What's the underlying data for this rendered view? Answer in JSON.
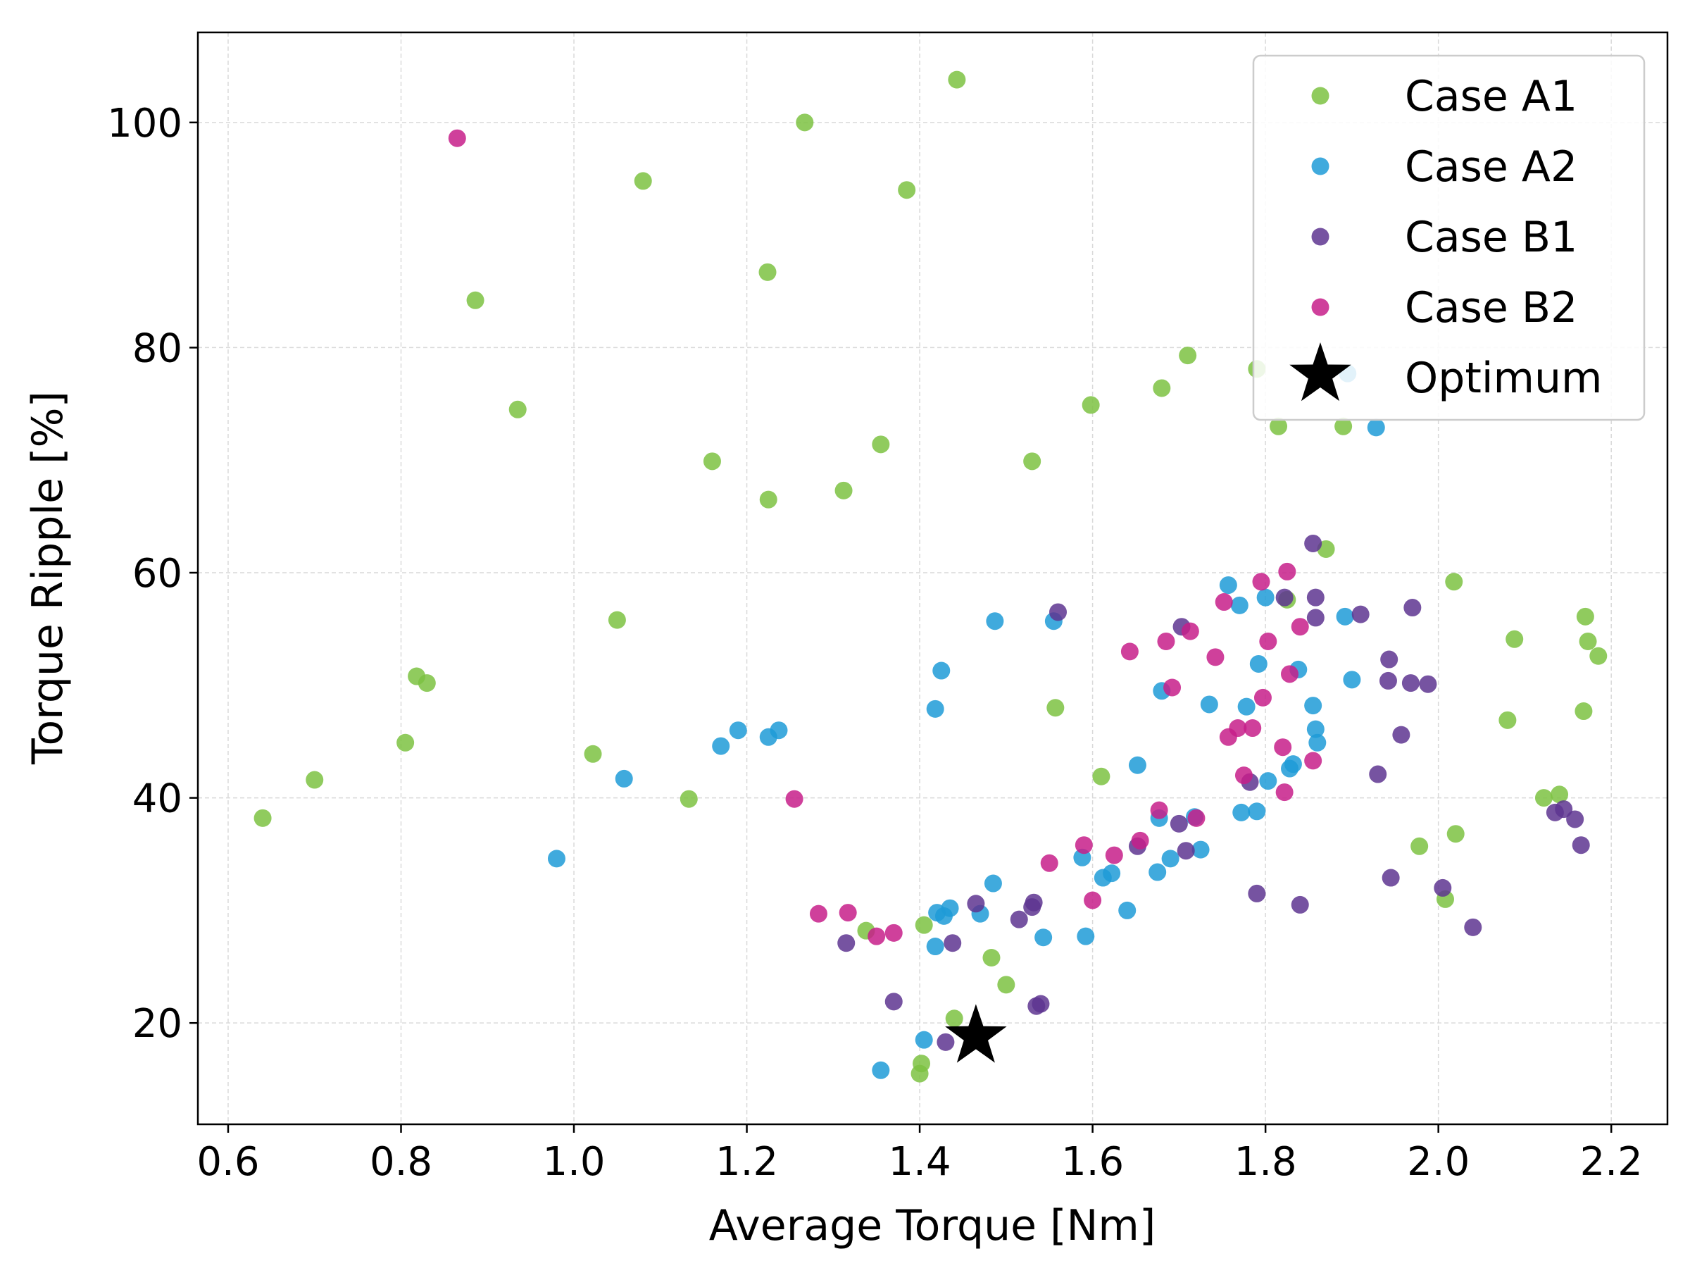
{
  "chart_data": {
    "type": "scatter",
    "xlabel": "Average Torque [Nm]",
    "ylabel": "Torque Ripple [%]",
    "xlim": [
      0.565,
      2.265
    ],
    "ylim": [
      11,
      108
    ],
    "xticks": [
      "0.6",
      "0.8",
      "1.0",
      "1.2",
      "1.4",
      "1.6",
      "1.8",
      "2.0",
      "2.2"
    ],
    "xtick_values": [
      0.6,
      0.8,
      1.0,
      1.2,
      1.4,
      1.6,
      1.8,
      2.0,
      2.2
    ],
    "yticks": [
      "20",
      "40",
      "60",
      "80",
      "100"
    ],
    "ytick_values": [
      20,
      40,
      60,
      80,
      100
    ],
    "grid": true,
    "legend_position": "top-right",
    "series": [
      {
        "name": "Case A1",
        "color": "#7dc242",
        "marker": "circle",
        "points": [
          [
            0.64,
            38.2
          ],
          [
            0.7,
            41.6
          ],
          [
            0.805,
            44.9
          ],
          [
            0.818,
            50.8
          ],
          [
            0.83,
            50.2
          ],
          [
            0.886,
            84.2
          ],
          [
            0.935,
            74.5
          ],
          [
            1.022,
            43.9
          ],
          [
            1.05,
            55.8
          ],
          [
            1.08,
            94.8
          ],
          [
            1.133,
            39.9
          ],
          [
            1.16,
            69.9
          ],
          [
            1.224,
            86.7
          ],
          [
            1.225,
            66.5
          ],
          [
            1.267,
            100.0
          ],
          [
            1.312,
            67.3
          ],
          [
            1.338,
            28.2
          ],
          [
            1.355,
            71.4
          ],
          [
            1.385,
            94.0
          ],
          [
            1.4,
            15.5
          ],
          [
            1.402,
            16.4
          ],
          [
            1.405,
            28.7
          ],
          [
            1.44,
            20.4
          ],
          [
            1.443,
            103.8
          ],
          [
            1.483,
            25.8
          ],
          [
            1.5,
            23.4
          ],
          [
            1.53,
            69.9
          ],
          [
            1.557,
            48.0
          ],
          [
            1.598,
            74.9
          ],
          [
            1.61,
            41.9
          ],
          [
            1.68,
            76.4
          ],
          [
            1.71,
            79.3
          ],
          [
            1.79,
            78.1
          ],
          [
            1.815,
            73.0
          ],
          [
            1.825,
            57.6
          ],
          [
            1.87,
            62.1
          ],
          [
            1.89,
            73.0
          ],
          [
            1.978,
            35.7
          ],
          [
            2.008,
            31.0
          ],
          [
            2.018,
            59.2
          ],
          [
            2.02,
            36.8
          ],
          [
            2.08,
            46.9
          ],
          [
            2.088,
            54.1
          ],
          [
            2.122,
            40.0
          ],
          [
            2.14,
            40.3
          ],
          [
            2.168,
            47.7
          ],
          [
            2.17,
            56.1
          ],
          [
            2.173,
            53.9
          ],
          [
            2.185,
            52.6
          ]
        ]
      },
      {
        "name": "Case A2",
        "color": "#1f9bd7",
        "marker": "circle",
        "points": [
          [
            0.98,
            34.6
          ],
          [
            1.058,
            41.7
          ],
          [
            1.17,
            44.6
          ],
          [
            1.19,
            46.0
          ],
          [
            1.225,
            45.4
          ],
          [
            1.237,
            46.0
          ],
          [
            1.355,
            15.8
          ],
          [
            1.405,
            18.5
          ],
          [
            1.418,
            26.8
          ],
          [
            1.418,
            47.9
          ],
          [
            1.42,
            29.8
          ],
          [
            1.425,
            51.3
          ],
          [
            1.428,
            29.5
          ],
          [
            1.435,
            30.2
          ],
          [
            1.47,
            29.7
          ],
          [
            1.485,
            32.4
          ],
          [
            1.487,
            55.7
          ],
          [
            1.543,
            27.6
          ],
          [
            1.555,
            55.7
          ],
          [
            1.588,
            34.7
          ],
          [
            1.592,
            27.7
          ],
          [
            1.612,
            32.9
          ],
          [
            1.622,
            33.3
          ],
          [
            1.64,
            30.0
          ],
          [
            1.652,
            42.9
          ],
          [
            1.675,
            33.4
          ],
          [
            1.677,
            38.2
          ],
          [
            1.68,
            49.5
          ],
          [
            1.69,
            34.6
          ],
          [
            1.718,
            38.3
          ],
          [
            1.725,
            35.4
          ],
          [
            1.735,
            48.3
          ],
          [
            1.757,
            58.9
          ],
          [
            1.77,
            57.1
          ],
          [
            1.772,
            38.7
          ],
          [
            1.778,
            48.1
          ],
          [
            1.79,
            38.8
          ],
          [
            1.792,
            51.9
          ],
          [
            1.8,
            57.8
          ],
          [
            1.803,
            41.5
          ],
          [
            1.828,
            42.6
          ],
          [
            1.832,
            43.0
          ],
          [
            1.838,
            51.4
          ],
          [
            1.855,
            48.2
          ],
          [
            1.858,
            46.1
          ],
          [
            1.892,
            56.1
          ],
          [
            1.895,
            77.7
          ],
          [
            1.928,
            72.9
          ],
          [
            1.86,
            44.9
          ],
          [
            1.9,
            50.5
          ]
        ]
      },
      {
        "name": "Case B1",
        "color": "#5e3590",
        "marker": "circle",
        "points": [
          [
            1.315,
            27.1
          ],
          [
            1.37,
            21.9
          ],
          [
            1.43,
            18.3
          ],
          [
            1.438,
            27.1
          ],
          [
            1.465,
            30.6
          ],
          [
            1.515,
            29.2
          ],
          [
            1.53,
            30.3
          ],
          [
            1.532,
            30.7
          ],
          [
            1.535,
            21.5
          ],
          [
            1.54,
            21.7
          ],
          [
            1.56,
            56.5
          ],
          [
            1.652,
            35.7
          ],
          [
            1.7,
            37.7
          ],
          [
            1.703,
            55.2
          ],
          [
            1.708,
            35.3
          ],
          [
            1.782,
            41.4
          ],
          [
            1.79,
            31.5
          ],
          [
            1.822,
            57.8
          ],
          [
            1.84,
            30.5
          ],
          [
            1.855,
            62.6
          ],
          [
            1.858,
            57.8
          ],
          [
            1.858,
            56.0
          ],
          [
            1.91,
            56.3
          ],
          [
            1.93,
            42.1
          ],
          [
            1.942,
            50.4
          ],
          [
            1.943,
            52.3
          ],
          [
            1.945,
            32.9
          ],
          [
            1.957,
            45.6
          ],
          [
            1.968,
            50.2
          ],
          [
            1.97,
            56.9
          ],
          [
            1.988,
            50.1
          ],
          [
            2.005,
            32.0
          ],
          [
            2.04,
            28.5
          ],
          [
            2.135,
            38.7
          ],
          [
            2.145,
            39.0
          ],
          [
            2.158,
            38.1
          ],
          [
            2.165,
            35.8
          ]
        ]
      },
      {
        "name": "Case B2",
        "color": "#c71e8a",
        "marker": "circle",
        "points": [
          [
            0.865,
            98.6
          ],
          [
            1.255,
            39.9
          ],
          [
            1.283,
            29.7
          ],
          [
            1.317,
            29.8
          ],
          [
            1.35,
            27.7
          ],
          [
            1.37,
            28.0
          ],
          [
            1.55,
            34.2
          ],
          [
            1.59,
            35.8
          ],
          [
            1.6,
            30.9
          ],
          [
            1.625,
            34.9
          ],
          [
            1.643,
            53.0
          ],
          [
            1.655,
            36.2
          ],
          [
            1.677,
            38.9
          ],
          [
            1.685,
            53.9
          ],
          [
            1.692,
            49.8
          ],
          [
            1.713,
            54.8
          ],
          [
            1.72,
            38.2
          ],
          [
            1.742,
            52.5
          ],
          [
            1.752,
            57.4
          ],
          [
            1.757,
            45.4
          ],
          [
            1.768,
            46.2
          ],
          [
            1.775,
            42.0
          ],
          [
            1.785,
            46.2
          ],
          [
            1.795,
            59.2
          ],
          [
            1.797,
            48.9
          ],
          [
            1.803,
            53.9
          ],
          [
            1.82,
            44.5
          ],
          [
            1.822,
            40.5
          ],
          [
            1.825,
            60.1
          ],
          [
            1.828,
            51.0
          ],
          [
            1.84,
            55.2
          ],
          [
            1.855,
            43.3
          ]
        ]
      }
    ],
    "optimum": {
      "name": "Optimum",
      "color": "#000000",
      "marker": "star",
      "x": 1.465,
      "y": 18.8
    }
  }
}
